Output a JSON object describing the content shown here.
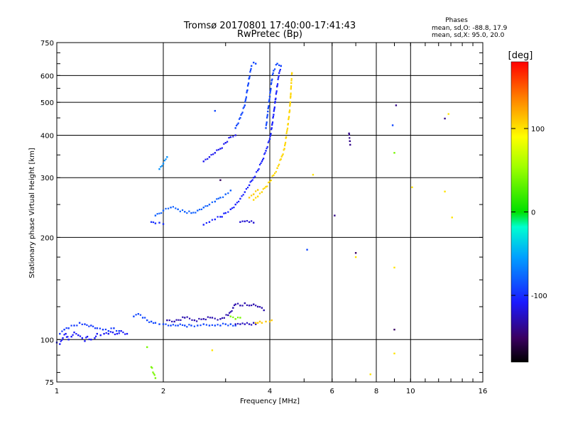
{
  "chart_data": {
    "type": "scatter",
    "title": "Tromsø 20170801 17:40:00-17:41:43",
    "subtitle": "RwPretec (Bp)",
    "xlabel": "Frequency [MHz]",
    "ylabel": "Stationary phase Virtual Height [km]",
    "xscale": "log",
    "yscale": "log",
    "xlim": [
      1,
      16
    ],
    "ylim": [
      75,
      750
    ],
    "x_ticks": [
      1,
      2,
      4,
      6,
      8,
      10,
      16
    ],
    "y_ticks": [
      75,
      100,
      200,
      300,
      400,
      500,
      600,
      750
    ],
    "grid": true,
    "stats": {
      "title": "Phases",
      "line_o": "mean, sd,O: -88.8, 17.9",
      "line_x": "mean, sd,X:  95.0, 20.0"
    },
    "colorbar": {
      "label": "[deg]",
      "range": [
        -180,
        180
      ],
      "ticks": [
        100,
        0,
        -100
      ]
    },
    "series": [
      {
        "color_deg": -110,
        "points": [
          [
            1.0,
            98
          ],
          [
            1.02,
            97
          ],
          [
            1.04,
            101
          ],
          [
            1.06,
            104
          ],
          [
            1.08,
            100
          ],
          [
            1.1,
            102
          ],
          [
            1.12,
            105
          ],
          [
            1.15,
            103
          ],
          [
            1.18,
            101
          ],
          [
            1.2,
            99
          ],
          [
            1.22,
            102
          ],
          [
            1.25,
            100
          ],
          [
            1.28,
            101
          ],
          [
            1.3,
            104
          ],
          [
            1.33,
            103
          ],
          [
            1.36,
            104
          ],
          [
            1.4,
            104
          ],
          [
            1.44,
            105
          ],
          [
            1.48,
            104
          ],
          [
            1.52,
            106
          ],
          [
            1.58,
            104
          ]
        ]
      },
      {
        "color_deg": -95,
        "points": [
          [
            1.02,
            104
          ],
          [
            1.05,
            107
          ],
          [
            1.08,
            108
          ],
          [
            1.12,
            110
          ],
          [
            1.16,
            112
          ],
          [
            1.2,
            111
          ],
          [
            1.25,
            110
          ],
          [
            1.3,
            108
          ],
          [
            1.35,
            107
          ],
          [
            1.4,
            106
          ],
          [
            1.45,
            108
          ],
          [
            1.5,
            106
          ]
        ]
      },
      {
        "color_deg": -90,
        "points": [
          [
            1.65,
            117
          ],
          [
            1.7,
            119
          ],
          [
            1.75,
            116
          ],
          [
            1.8,
            114
          ],
          [
            1.85,
            113
          ],
          [
            1.9,
            112
          ],
          [
            1.95,
            111
          ],
          [
            2.0,
            111
          ],
          [
            2.1,
            110
          ],
          [
            2.2,
            110
          ],
          [
            2.3,
            110
          ],
          [
            2.4,
            110
          ],
          [
            2.5,
            110
          ],
          [
            2.6,
            111
          ],
          [
            2.7,
            110
          ],
          [
            2.8,
            110
          ],
          [
            2.9,
            110
          ],
          [
            3.0,
            111
          ],
          [
            3.1,
            111
          ],
          [
            3.2,
            110
          ]
        ]
      },
      {
        "color_deg": -125,
        "points": [
          [
            3.2,
            111
          ],
          [
            3.3,
            111
          ],
          [
            3.4,
            111
          ],
          [
            3.5,
            111
          ],
          [
            3.6,
            112
          ],
          [
            3.65,
            111
          ]
        ]
      },
      {
        "color_deg": -130,
        "points": [
          [
            2.05,
            114
          ],
          [
            2.15,
            113
          ],
          [
            2.3,
            116
          ],
          [
            2.45,
            114
          ],
          [
            2.6,
            115
          ],
          [
            2.75,
            116
          ],
          [
            2.9,
            115
          ],
          [
            3.05,
            118
          ],
          [
            3.15,
            124
          ],
          [
            3.2,
            127
          ],
          [
            3.3,
            126
          ],
          [
            3.4,
            128
          ],
          [
            3.5,
            126
          ],
          [
            3.6,
            127
          ],
          [
            3.7,
            125
          ],
          [
            3.8,
            124
          ],
          [
            3.85,
            122
          ]
        ]
      },
      {
        "color_deg": 110,
        "points": [
          [
            3.65,
            112
          ],
          [
            3.7,
            112
          ],
          [
            3.75,
            113
          ],
          [
            3.8,
            112
          ],
          [
            3.9,
            113
          ],
          [
            4.0,
            113
          ],
          [
            4.05,
            114
          ]
        ]
      },
      {
        "color_deg": 40,
        "points": [
          [
            3.1,
            117
          ],
          [
            3.2,
            115
          ],
          [
            3.3,
            116
          ]
        ]
      },
      {
        "color_deg": -105,
        "points": [
          [
            2.6,
            218
          ],
          [
            2.7,
            222
          ],
          [
            2.8,
            226
          ],
          [
            2.9,
            230
          ],
          [
            3.0,
            236
          ],
          [
            3.1,
            242
          ],
          [
            3.2,
            250
          ],
          [
            3.3,
            260
          ],
          [
            3.4,
            272
          ],
          [
            3.5,
            285
          ],
          [
            3.6,
            300
          ],
          [
            3.7,
            315
          ],
          [
            3.8,
            335
          ],
          [
            3.9,
            360
          ],
          [
            4.0,
            390
          ],
          [
            4.05,
            420
          ],
          [
            4.1,
            460
          ],
          [
            4.15,
            510
          ],
          [
            4.2,
            560
          ],
          [
            4.25,
            610
          ],
          [
            4.3,
            640
          ]
        ]
      },
      {
        "color_deg": -80,
        "points": [
          [
            1.9,
            232
          ],
          [
            2.0,
            240
          ],
          [
            2.1,
            245
          ],
          [
            2.2,
            242
          ],
          [
            2.3,
            238
          ],
          [
            2.4,
            236
          ],
          [
            2.5,
            240
          ],
          [
            2.6,
            245
          ],
          [
            2.7,
            250
          ],
          [
            2.8,
            255
          ],
          [
            2.9,
            262
          ],
          [
            3.0,
            268
          ],
          [
            3.1,
            275
          ]
        ]
      },
      {
        "color_deg": -100,
        "points": [
          [
            1.85,
            222
          ],
          [
            1.9,
            220
          ],
          [
            1.95,
            221
          ],
          [
            2.0,
            219
          ]
        ]
      },
      {
        "color_deg": -90,
        "points": [
          [
            3.2,
            420
          ],
          [
            3.3,
            450
          ],
          [
            3.4,
            490
          ],
          [
            3.45,
            540
          ],
          [
            3.5,
            590
          ],
          [
            3.55,
            640
          ],
          [
            3.6,
            655
          ],
          [
            3.65,
            650
          ]
        ]
      },
      {
        "color_deg": -112,
        "points": [
          [
            2.6,
            335
          ],
          [
            2.7,
            345
          ],
          [
            2.8,
            355
          ],
          [
            2.9,
            365
          ],
          [
            3.0,
            380
          ],
          [
            3.1,
            395
          ],
          [
            3.2,
            400
          ]
        ]
      },
      {
        "color_deg": -90,
        "points": [
          [
            3.9,
            420
          ],
          [
            3.95,
            470
          ],
          [
            4.0,
            520
          ],
          [
            4.05,
            580
          ],
          [
            4.1,
            620
          ],
          [
            4.2,
            650
          ],
          [
            4.3,
            640
          ]
        ]
      },
      {
        "color_deg": 105,
        "points": [
          [
            3.6,
            258
          ],
          [
            3.7,
            264
          ],
          [
            3.8,
            272
          ],
          [
            3.9,
            282
          ],
          [
            4.0,
            292
          ],
          [
            4.1,
            305
          ],
          [
            4.2,
            320
          ],
          [
            4.3,
            340
          ],
          [
            4.4,
            365
          ],
          [
            4.45,
            395
          ],
          [
            4.5,
            430
          ],
          [
            4.55,
            470
          ],
          [
            4.58,
            520
          ],
          [
            4.6,
            570
          ],
          [
            4.62,
            610
          ]
        ]
      },
      {
        "color_deg": 110,
        "points": [
          [
            3.5,
            262
          ],
          [
            3.6,
            268
          ],
          [
            3.7,
            276
          ]
        ]
      },
      {
        "color_deg": -60,
        "points": [
          [
            1.95,
            318
          ],
          [
            2.0,
            330
          ],
          [
            2.05,
            345
          ]
        ]
      },
      {
        "color_deg": -120,
        "points": [
          [
            3.3,
            222
          ],
          [
            3.4,
            223
          ],
          [
            3.5,
            222
          ],
          [
            3.6,
            221
          ]
        ]
      },
      {
        "color_deg": -140,
        "points": [
          [
            6.1,
            232
          ],
          [
            6.7,
            405
          ],
          [
            6.75,
            375
          ],
          [
            9.1,
            490
          ],
          [
            12.5,
            448
          ]
        ]
      },
      {
        "color_deg": -90,
        "points": [
          [
            8.9,
            428
          ],
          [
            5.1,
            184
          ],
          [
            2.8,
            472
          ]
        ]
      },
      {
        "color_deg": 40,
        "points": [
          [
            9.0,
            355
          ],
          [
            1.9,
            77
          ],
          [
            1.85,
            83
          ],
          [
            1.8,
            95
          ]
        ]
      },
      {
        "color_deg": 100,
        "points": [
          [
            9.0,
            91
          ],
          [
            7.7,
            79
          ],
          [
            7.0,
            175
          ],
          [
            9.0,
            163
          ],
          [
            10.1,
            281
          ],
          [
            12.8,
            462
          ],
          [
            13.1,
            229
          ],
          [
            12.5,
            273
          ],
          [
            5.3,
            306
          ],
          [
            2.75,
            93
          ]
        ]
      },
      {
        "color_deg": -150,
        "points": [
          [
            7.0,
            180
          ],
          [
            9.0,
            107
          ],
          [
            2.9,
            295
          ]
        ]
      }
    ]
  }
}
